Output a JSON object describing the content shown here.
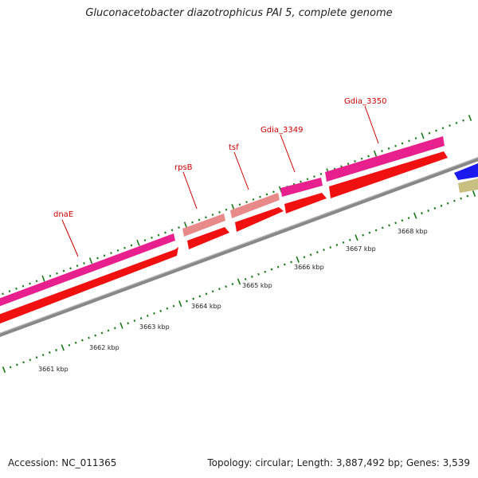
{
  "title": "Gluconacetobacter diazotrophicus PAI 5, complete genome",
  "footer": {
    "accession": "Accession: NC_011365",
    "summary": "Topology: circular; Length: 3,887,492 bp; Genes: 3,539"
  },
  "colors": {
    "gene_magenta": "#e8208e",
    "gene_pink": "#e88a8a",
    "cds_red": "#f01010",
    "backbone": "#888888",
    "tick_green": "#1a7a1a",
    "label_red": "#cc0000",
    "blue_feature": "#1a1aee",
    "tan_feature": "#c8c080"
  },
  "gene_labels": [
    {
      "id": "dnaE",
      "text": "dnaE"
    },
    {
      "id": "rpsB",
      "text": "rpsB"
    },
    {
      "id": "tsf",
      "text": "tsf"
    },
    {
      "id": "gdia3349",
      "text": "Gdia_3349"
    },
    {
      "id": "gdia3350",
      "text": "Gdia_3350"
    }
  ],
  "kbp_labels": [
    {
      "id": "k3661",
      "text": "3661 kbp"
    },
    {
      "id": "k3662",
      "text": "3662 kbp"
    },
    {
      "id": "k3663",
      "text": "3663 kbp"
    },
    {
      "id": "k3664",
      "text": "3664 kbp"
    },
    {
      "id": "k3665",
      "text": "3665 kbp"
    },
    {
      "id": "k3666",
      "text": "3666 kbp"
    },
    {
      "id": "k3667",
      "text": "3667 kbp"
    },
    {
      "id": "k3668",
      "text": "3668 kbp"
    }
  ]
}
